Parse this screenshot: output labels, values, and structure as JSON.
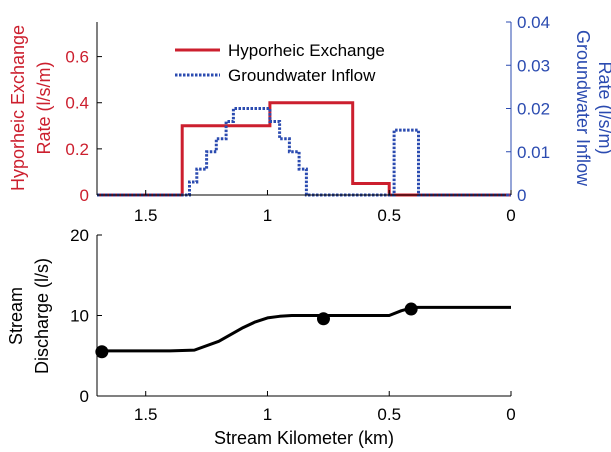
{
  "colors": {
    "hyporheic": "#cc1f2e",
    "groundwater": "#2b4bb0",
    "discharge": "#000000",
    "axis": "#000000"
  },
  "chart_data": [
    {
      "type": "line",
      "title": "",
      "xlabel": "",
      "x_reversed": true,
      "xlim": [
        0,
        1.7
      ],
      "x_ticks": [
        1.5,
        1,
        0.5,
        0
      ],
      "x_tick_labels": [
        "1.5",
        "1",
        "0.5",
        "0"
      ],
      "left_axis": {
        "label_line1": "Hyporheic Exchange",
        "label_line2": "Rate (l/s/m)",
        "ylim": [
          0,
          0.75
        ],
        "ticks": [
          0,
          0.2,
          0.4,
          0.6
        ],
        "tick_labels": [
          "0",
          "0.2",
          "0.4",
          "0.6"
        ]
      },
      "right_axis": {
        "label_line1": "Groundwater Inflow",
        "label_line2": "Rate (l/s/m)",
        "ylim": [
          0,
          0.04
        ],
        "ticks": [
          0,
          0.01,
          0.02,
          0.03,
          0.04
        ],
        "tick_labels": [
          "0",
          "0.01",
          "0.02",
          "0.03",
          "0.04"
        ]
      },
      "legend_position": "top-center",
      "series": [
        {
          "name": "Hyporheic Exchange",
          "axis": "left",
          "style": "solid",
          "x": [
            1.7,
            1.35,
            1.35,
            0.99,
            0.99,
            0.65,
            0.65,
            0.5,
            0.5,
            0
          ],
          "y": [
            0,
            0,
            0.3,
            0.3,
            0.4,
            0.4,
            0.05,
            0.05,
            0,
            0
          ]
        },
        {
          "name": "Groundwater Inflow",
          "axis": "right",
          "style": "dotted",
          "x": [
            1.7,
            1.32,
            1.32,
            1.29,
            1.29,
            1.25,
            1.25,
            1.21,
            1.21,
            1.17,
            1.17,
            1.14,
            1.14,
            0.99,
            0.99,
            0.95,
            0.95,
            0.91,
            0.91,
            0.87,
            0.87,
            0.84,
            0.84,
            0.48,
            0.48,
            0.38,
            0.38,
            0
          ],
          "y": [
            0,
            0,
            0.003,
            0.003,
            0.006,
            0.006,
            0.01,
            0.01,
            0.013,
            0.013,
            0.017,
            0.017,
            0.02,
            0.02,
            0.017,
            0.017,
            0.013,
            0.013,
            0.01,
            0.01,
            0.006,
            0.006,
            0,
            0,
            0.015,
            0.015,
            0,
            0
          ]
        }
      ]
    },
    {
      "type": "line",
      "title": "",
      "xlabel": "Stream Kilometer (km)",
      "ylabel_line1": "Stream",
      "ylabel_line2": "Discharge (l/s)",
      "x_reversed": true,
      "xlim": [
        0,
        1.7
      ],
      "ylim": [
        0,
        20
      ],
      "x_ticks": [
        1.5,
        1,
        0.5,
        0
      ],
      "x_tick_labels": [
        "1.5",
        "1",
        "0.5",
        "0"
      ],
      "y_ticks": [
        0,
        10,
        20
      ],
      "y_tick_labels": [
        "0",
        "10",
        "20"
      ],
      "series": [
        {
          "name": "",
          "style": "solid",
          "x": [
            1.7,
            1.6,
            1.5,
            1.4,
            1.3,
            1.2,
            1.1,
            1.05,
            1.0,
            0.95,
            0.9,
            0.85,
            0.8,
            0.7,
            0.6,
            0.5,
            0.45,
            0.4,
            0.3,
            0.2,
            0.1,
            0
          ],
          "y": [
            5.6,
            5.6,
            5.6,
            5.6,
            5.7,
            6.8,
            8.5,
            9.2,
            9.7,
            9.9,
            10.0,
            10.0,
            10.0,
            10.0,
            10.0,
            10.0,
            10.6,
            11.0,
            11.0,
            11.0,
            11.0,
            11.0
          ]
        }
      ],
      "markers": [
        {
          "x": 1.68,
          "y": 5.5
        },
        {
          "x": 0.77,
          "y": 9.6
        },
        {
          "x": 0.41,
          "y": 10.8
        }
      ]
    }
  ]
}
